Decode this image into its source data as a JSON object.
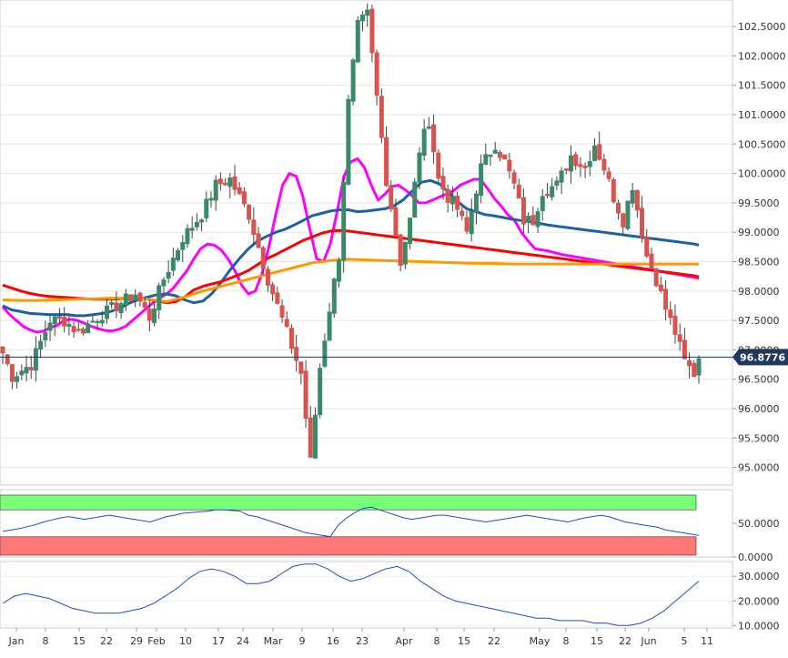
{
  "chart_data": [
    {
      "type": "candlestick",
      "x_tick_labels": [
        "Jan",
        "8",
        "15",
        "22",
        "29",
        "Feb",
        "10",
        "17",
        "24",
        "Mar",
        "9",
        "16",
        "23",
        "Apr",
        "8",
        "15",
        "22",
        "May",
        "8",
        "15",
        "22",
        "Jun",
        "5",
        "11"
      ],
      "y_tick_labels": [
        "102.5000",
        "102.0000",
        "101.5000",
        "101.0000",
        "100.5000",
        "100.0000",
        "99.5000",
        "99.0000",
        "98.5000",
        "98.0000",
        "97.5000",
        "97.0000",
        "96.5000",
        "96.0000",
        "95.5000",
        "95.0000"
      ],
      "ylim": [
        94.7,
        102.95
      ],
      "last_price": 96.8776,
      "last_price_label": "96.8776",
      "colors": {
        "up": "#3a8a6a",
        "down": "#d9534f",
        "sma_fast": "#ff00ff",
        "sma_mid": "#1f5fa8",
        "sma_slow": "#ff0000",
        "sma_long": "#ff9900",
        "last_line": "#1f3a5f"
      },
      "moving_averages": [
        {
          "color_key": "sma_fast",
          "x": [
            0,
            1.5,
            3,
            4.5,
            6,
            7.5,
            9,
            10.5,
            12,
            13.5,
            15,
            16.5,
            18,
            19.5,
            21,
            22.5,
            24,
            25.5,
            27,
            28.5,
            30,
            31.5,
            33,
            34.5,
            36,
            37.5,
            39,
            40.5,
            42,
            43.5,
            45,
            46.5,
            48,
            49.5,
            51,
            52.5,
            54,
            55.5,
            57,
            58.5,
            60,
            61.5,
            63,
            64.5,
            66,
            67.5,
            69,
            70.5,
            72,
            73.5,
            75,
            76.5,
            78,
            79.5,
            81,
            82.5,
            84,
            85.5,
            87,
            88.5,
            90,
            91.5,
            93,
            94.5,
            96,
            97.5,
            99,
            100.5,
            102,
            103.5,
            105,
            106.5,
            108,
            109.5,
            111,
            112.5,
            114,
            115.5,
            117,
            118.5,
            120,
            121.5,
            123,
            124.5,
            126,
            127.5,
            129,
            130.5,
            132,
            133.5,
            135,
            136.5,
            138,
            139.5,
            141,
            142.5,
            144,
            145.5,
            147,
            148.5,
            150,
            151.5,
            153
          ],
          "y": [
            97.73,
            97.6,
            97.5,
            97.4,
            97.34,
            97.3,
            97.32,
            97.38,
            97.42,
            97.5,
            97.52,
            97.5,
            97.45,
            97.4,
            97.36,
            97.33,
            97.32,
            97.35,
            97.4,
            97.5,
            97.6,
            97.7,
            97.8,
            97.88,
            97.95,
            98.05,
            98.2,
            98.35,
            98.55,
            98.72,
            98.8,
            98.78,
            98.7,
            98.55,
            98.35,
            98.1,
            97.95,
            98.0,
            98.3,
            98.75,
            99.3,
            99.8,
            100.0,
            99.95,
            99.6,
            99.05,
            98.55,
            98.5,
            98.8,
            99.35,
            99.95,
            100.2,
            100.25,
            100.1,
            99.8,
            99.55,
            99.65,
            99.78,
            99.8,
            99.72,
            99.62,
            99.5,
            99.5,
            99.55,
            99.6,
            99.65,
            99.7,
            99.8,
            99.85,
            99.9,
            99.9,
            99.75,
            99.58,
            99.45,
            99.3,
            99.2,
            99.0,
            98.85,
            98.72,
            98.7,
            98.68,
            98.65,
            98.62,
            98.6,
            98.58,
            98.56,
            98.54,
            98.52,
            98.5,
            98.48,
            98.46,
            98.44,
            98.42,
            98.4,
            98.38,
            98.36,
            98.34,
            98.32,
            98.3,
            98.28,
            98.26,
            98.24,
            98.22
          ]
        },
        {
          "color_key": "sma_mid",
          "x": [
            0,
            2,
            4,
            6,
            8,
            10,
            12,
            14,
            16,
            18,
            20,
            22,
            24,
            26,
            28,
            30,
            32,
            34,
            36,
            38,
            40,
            42,
            44,
            46,
            48,
            50,
            52,
            54,
            56,
            58,
            60,
            62,
            64,
            66,
            68,
            70,
            72,
            74,
            76,
            78,
            80,
            82,
            84,
            86,
            88,
            90,
            92,
            94,
            96,
            98,
            100,
            102,
            104,
            106,
            108,
            110,
            112,
            114,
            116,
            118,
            120,
            122,
            124,
            126,
            128,
            130,
            132,
            134,
            136,
            138,
            140,
            142,
            144,
            146,
            148,
            150,
            152,
            153
          ],
          "y": [
            97.75,
            97.68,
            97.65,
            97.62,
            97.61,
            97.6,
            97.6,
            97.6,
            97.58,
            97.58,
            97.6,
            97.62,
            97.66,
            97.72,
            97.8,
            97.86,
            97.9,
            97.94,
            97.95,
            97.92,
            97.85,
            97.8,
            97.83,
            97.96,
            98.15,
            98.36,
            98.55,
            98.72,
            98.85,
            98.93,
            99.0,
            99.05,
            99.12,
            99.2,
            99.28,
            99.32,
            99.36,
            99.38,
            99.38,
            99.35,
            99.36,
            99.38,
            99.4,
            99.45,
            99.55,
            99.7,
            99.85,
            99.88,
            99.82,
            99.68,
            99.52,
            99.4,
            99.35,
            99.3,
            99.28,
            99.25,
            99.22,
            99.2,
            99.18,
            99.15,
            99.12,
            99.1,
            99.08,
            99.06,
            99.04,
            99.02,
            99.0,
            98.98,
            98.96,
            98.94,
            98.92,
            98.9,
            98.88,
            98.86,
            98.84,
            98.82,
            98.8,
            98.78
          ]
        },
        {
          "color_key": "sma_slow",
          "x": [
            0,
            2,
            4,
            6,
            8,
            10,
            12,
            14,
            16,
            18,
            20,
            22,
            24,
            26,
            28,
            30,
            32,
            34,
            36,
            38,
            40,
            42,
            44,
            46,
            48,
            50,
            52,
            54,
            56,
            58,
            60,
            62,
            64,
            66,
            68,
            70,
            72,
            74,
            76,
            78,
            80,
            82,
            84,
            86,
            88,
            90,
            92,
            94,
            96,
            98,
            100,
            102,
            104,
            106,
            108,
            110,
            112,
            114,
            116,
            118,
            120,
            122,
            124,
            126,
            128,
            130,
            132,
            134,
            136,
            138,
            140,
            142,
            144,
            146,
            148,
            150,
            152,
            153
          ],
          "y": [
            98.1,
            98.05,
            98.0,
            97.96,
            97.93,
            97.91,
            97.9,
            97.89,
            97.88,
            97.87,
            97.86,
            97.86,
            97.86,
            97.87,
            97.88,
            97.88,
            97.86,
            97.83,
            97.8,
            97.82,
            97.9,
            98.02,
            98.08,
            98.12,
            98.16,
            98.22,
            98.28,
            98.35,
            98.45,
            98.55,
            98.62,
            98.7,
            98.78,
            98.86,
            98.92,
            98.98,
            99.02,
            99.03,
            99.02,
            99.0,
            98.98,
            98.96,
            98.94,
            98.92,
            98.9,
            98.88,
            98.86,
            98.84,
            98.82,
            98.8,
            98.78,
            98.76,
            98.74,
            98.72,
            98.7,
            98.68,
            98.66,
            98.64,
            98.62,
            98.6,
            98.58,
            98.56,
            98.54,
            98.52,
            98.5,
            98.48,
            98.46,
            98.44,
            98.42,
            98.4,
            98.38,
            98.36,
            98.34,
            98.32,
            98.3,
            98.28,
            98.26,
            98.24
          ]
        },
        {
          "color_key": "sma_long",
          "x": [
            0,
            4,
            8,
            12,
            16,
            20,
            24,
            28,
            32,
            36,
            40,
            44,
            48,
            52,
            56,
            60,
            64,
            68,
            72,
            76,
            80,
            84,
            88,
            92,
            96,
            100,
            104,
            108,
            112,
            116,
            120,
            124,
            128,
            132,
            136,
            140,
            144,
            148,
            152,
            153
          ],
          "y": [
            97.85,
            97.84,
            97.84,
            97.85,
            97.86,
            97.87,
            97.88,
            97.88,
            97.86,
            97.82,
            97.9,
            98.0,
            98.08,
            98.16,
            98.24,
            98.32,
            98.4,
            98.48,
            98.52,
            98.54,
            98.53,
            98.52,
            98.51,
            98.5,
            98.49,
            98.48,
            98.47,
            98.47,
            98.46,
            98.46,
            98.46,
            98.46,
            98.46,
            98.46,
            98.46,
            98.46,
            98.46,
            98.46,
            98.46,
            98.46
          ]
        }
      ]
    },
    {
      "type": "line",
      "name": "oscillator-1",
      "y_tick_labels": [
        "50.0000",
        "0.0000"
      ],
      "ylim": [
        0,
        100
      ],
      "overbought_level": 70,
      "oversold_level": 30,
      "colors": {
        "line": "#1f4fc8",
        "upper_band": "#77ff77",
        "lower_band": "#ff7777"
      },
      "values": [
        38,
        40,
        42,
        45,
        48,
        52,
        55,
        58,
        60,
        58,
        56,
        58,
        60,
        62,
        60,
        58,
        56,
        54,
        52,
        56,
        60,
        62,
        65,
        66,
        67,
        68,
        70,
        70,
        69,
        68,
        62,
        60,
        56,
        52,
        48,
        44,
        40,
        36,
        34,
        32,
        30,
        48,
        58,
        66,
        72,
        74,
        70,
        66,
        62,
        58,
        56,
        58,
        60,
        62,
        62,
        60,
        58,
        56,
        54,
        52,
        54,
        56,
        58,
        60,
        62,
        60,
        58,
        56,
        54,
        52,
        55,
        58,
        60,
        62,
        60,
        56,
        52,
        50,
        48,
        46,
        44,
        40,
        38,
        36,
        34,
        32
      ]
    },
    {
      "type": "line",
      "name": "oscillator-2",
      "y_tick_labels": [
        "30.0000",
        "20.0000",
        "10.0000"
      ],
      "ylim": [
        9,
        36
      ],
      "colors": {
        "line": "#1f4fc8"
      },
      "values": [
        19,
        22,
        23,
        22,
        21,
        19,
        17,
        16,
        15,
        15,
        15,
        16,
        17,
        19,
        22,
        25,
        29,
        32,
        33,
        32,
        30,
        27,
        27,
        28,
        31,
        34,
        35,
        35,
        33,
        30,
        28,
        29,
        31,
        33,
        34,
        32,
        28,
        25,
        22,
        20,
        19,
        18,
        17,
        16,
        15,
        14,
        13,
        13,
        12,
        12,
        12,
        11,
        11,
        10,
        10,
        11,
        13,
        16,
        20,
        24,
        28
      ]
    }
  ]
}
